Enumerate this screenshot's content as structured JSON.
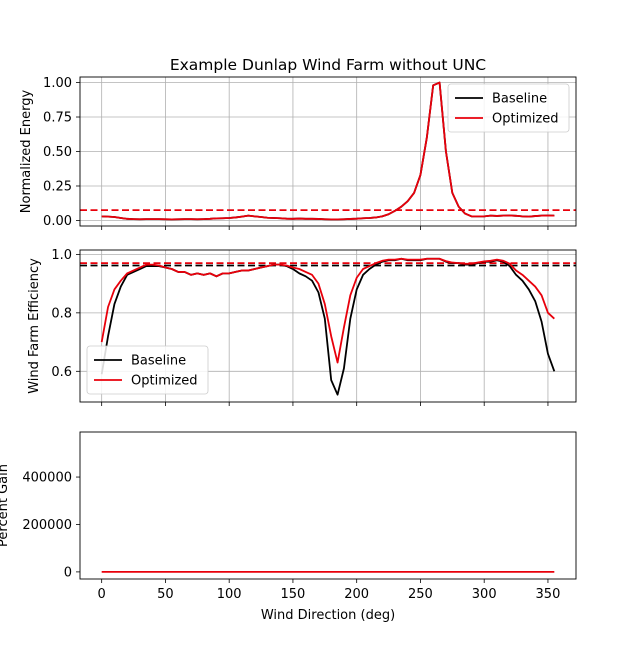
{
  "chart_data": {
    "title": "Example Dunlap Wind Farm without UNC",
    "xlabel": "Wind Direction (deg)",
    "x_ticks": [
      0,
      50,
      100,
      150,
      200,
      250,
      300,
      350
    ],
    "xlim": [
      -17,
      372
    ],
    "panels": [
      {
        "id": "energy",
        "type": "line",
        "ylabel": "Normalized Energy",
        "ylim": [
          -0.04,
          1.04
        ],
        "y_ticks": [
          0.0,
          0.25,
          0.5,
          0.75,
          1.0
        ],
        "y_tick_labels": [
          "0.00",
          "0.25",
          "0.50",
          "0.75",
          "1.00"
        ],
        "grid": true,
        "legend_position": "top-right",
        "reference_lines": [
          {
            "y": 0.075,
            "color": "#e8000b",
            "style": "dashed"
          }
        ],
        "x": [
          0,
          5,
          10,
          15,
          20,
          25,
          30,
          35,
          40,
          45,
          50,
          55,
          60,
          65,
          70,
          75,
          80,
          85,
          90,
          95,
          100,
          105,
          110,
          115,
          120,
          125,
          130,
          135,
          140,
          145,
          150,
          155,
          160,
          165,
          170,
          175,
          180,
          185,
          190,
          195,
          200,
          205,
          210,
          215,
          220,
          225,
          230,
          235,
          240,
          245,
          250,
          255,
          260,
          265,
          270,
          275,
          280,
          285,
          290,
          295,
          300,
          305,
          310,
          315,
          320,
          325,
          330,
          335,
          340,
          345,
          350,
          355
        ],
        "series": [
          {
            "name": "Baseline",
            "color": "#000000",
            "values": [
              0.03,
              0.028,
              0.025,
              0.018,
              0.012,
              0.01,
              0.009,
              0.01,
              0.01,
              0.01,
              0.009,
              0.008,
              0.009,
              0.01,
              0.01,
              0.009,
              0.01,
              0.012,
              0.015,
              0.016,
              0.018,
              0.022,
              0.028,
              0.035,
              0.03,
              0.025,
              0.02,
              0.018,
              0.016,
              0.013,
              0.012,
              0.014,
              0.012,
              0.012,
              0.011,
              0.009,
              0.008,
              0.008,
              0.009,
              0.011,
              0.013,
              0.016,
              0.018,
              0.022,
              0.03,
              0.045,
              0.07,
              0.1,
              0.14,
              0.2,
              0.33,
              0.6,
              0.98,
              1.0,
              0.5,
              0.2,
              0.1,
              0.05,
              0.03,
              0.03,
              0.03,
              0.035,
              0.033,
              0.035,
              0.036,
              0.034,
              0.03,
              0.028,
              0.032,
              0.035,
              0.036,
              0.035
            ]
          },
          {
            "name": "Optimized",
            "color": "#e8000b",
            "values": [
              0.03,
              0.028,
              0.025,
              0.018,
              0.012,
              0.01,
              0.009,
              0.01,
              0.01,
              0.01,
              0.009,
              0.008,
              0.009,
              0.01,
              0.01,
              0.009,
              0.01,
              0.012,
              0.015,
              0.016,
              0.018,
              0.022,
              0.028,
              0.035,
              0.03,
              0.025,
              0.02,
              0.018,
              0.016,
              0.013,
              0.012,
              0.014,
              0.012,
              0.012,
              0.011,
              0.009,
              0.008,
              0.008,
              0.009,
              0.011,
              0.013,
              0.016,
              0.018,
              0.022,
              0.03,
              0.045,
              0.07,
              0.1,
              0.14,
              0.2,
              0.33,
              0.6,
              0.98,
              1.0,
              0.5,
              0.2,
              0.1,
              0.05,
              0.03,
              0.03,
              0.03,
              0.035,
              0.033,
              0.035,
              0.036,
              0.034,
              0.03,
              0.028,
              0.032,
              0.035,
              0.036,
              0.035
            ]
          }
        ]
      },
      {
        "id": "efficiency",
        "type": "line",
        "ylabel": "Wind Farm Efficiency",
        "ylim": [
          0.495,
          1.015
        ],
        "y_ticks": [
          0.6,
          0.8,
          1.0
        ],
        "y_tick_labels": [
          "0.6",
          "0.8",
          "1.0"
        ],
        "grid": true,
        "legend_position": "lower-left",
        "reference_lines": [
          {
            "y": 0.962,
            "color": "#000000",
            "style": "dashed"
          },
          {
            "y": 0.97,
            "color": "#e8000b",
            "style": "dashed"
          }
        ],
        "x": [
          0,
          5,
          10,
          15,
          20,
          25,
          30,
          35,
          40,
          45,
          50,
          55,
          60,
          65,
          70,
          75,
          80,
          85,
          90,
          95,
          100,
          105,
          110,
          115,
          120,
          125,
          130,
          135,
          140,
          145,
          150,
          155,
          160,
          165,
          170,
          175,
          180,
          185,
          190,
          195,
          200,
          205,
          210,
          215,
          220,
          225,
          230,
          235,
          240,
          245,
          250,
          255,
          260,
          265,
          270,
          275,
          280,
          285,
          290,
          295,
          300,
          305,
          310,
          315,
          320,
          325,
          330,
          335,
          340,
          345,
          350,
          355
        ],
        "series": [
          {
            "name": "Baseline",
            "color": "#000000",
            "values": [
              0.59,
              0.72,
              0.83,
              0.89,
              0.93,
              0.94,
              0.95,
              0.96,
              0.96,
              0.96,
              0.955,
              0.95,
              0.94,
              0.94,
              0.93,
              0.935,
              0.93,
              0.935,
              0.925,
              0.935,
              0.935,
              0.94,
              0.945,
              0.945,
              0.95,
              0.955,
              0.96,
              0.965,
              0.965,
              0.96,
              0.95,
              0.935,
              0.925,
              0.91,
              0.87,
              0.78,
              0.57,
              0.52,
              0.61,
              0.78,
              0.88,
              0.93,
              0.95,
              0.965,
              0.975,
              0.98,
              0.98,
              0.985,
              0.98,
              0.98,
              0.98,
              0.985,
              0.985,
              0.985,
              0.975,
              0.97,
              0.97,
              0.965,
              0.965,
              0.97,
              0.975,
              0.975,
              0.98,
              0.975,
              0.96,
              0.93,
              0.91,
              0.88,
              0.84,
              0.77,
              0.66,
              0.6
            ]
          },
          {
            "name": "Optimized",
            "color": "#e8000b",
            "values": [
              0.7,
              0.82,
              0.88,
              0.91,
              0.935,
              0.945,
              0.955,
              0.965,
              0.965,
              0.962,
              0.955,
              0.95,
              0.94,
              0.94,
              0.93,
              0.935,
              0.93,
              0.935,
              0.925,
              0.935,
              0.935,
              0.94,
              0.945,
              0.945,
              0.95,
              0.955,
              0.96,
              0.965,
              0.965,
              0.962,
              0.955,
              0.95,
              0.94,
              0.93,
              0.9,
              0.83,
              0.72,
              0.63,
              0.75,
              0.86,
              0.92,
              0.95,
              0.96,
              0.97,
              0.978,
              0.982,
              0.982,
              0.985,
              0.982,
              0.982,
              0.982,
              0.985,
              0.985,
              0.985,
              0.977,
              0.972,
              0.97,
              0.968,
              0.968,
              0.972,
              0.976,
              0.978,
              0.982,
              0.978,
              0.968,
              0.945,
              0.93,
              0.91,
              0.89,
              0.86,
              0.8,
              0.78
            ]
          }
        ]
      },
      {
        "id": "gain",
        "type": "line",
        "ylabel": "Percent Gain",
        "ylim": [
          -30000,
          590000
        ],
        "y_ticks": [
          0,
          200000,
          400000
        ],
        "y_tick_labels": [
          "0",
          "200000",
          "400000"
        ],
        "grid": false,
        "x": [
          0,
          5,
          10,
          15,
          20,
          25,
          30,
          35,
          40,
          45,
          50,
          55,
          60,
          65,
          70,
          75,
          80,
          85,
          90,
          95,
          100,
          105,
          110,
          115,
          120,
          125,
          130,
          135,
          140,
          145,
          150,
          155,
          160,
          165,
          170,
          175,
          180,
          185,
          190,
          195,
          200,
          205,
          210,
          215,
          220,
          225,
          230,
          235,
          240,
          245,
          250,
          255,
          260,
          265,
          270,
          275,
          280,
          285,
          290,
          295,
          300,
          305,
          310,
          315,
          320,
          325,
          330,
          335,
          340,
          345,
          350,
          355
        ],
        "series": [
          {
            "name": "",
            "color": "#e8000b",
            "values": [
              0,
              0,
              0,
              0,
              0,
              0,
              0,
              0,
              0,
              0,
              0,
              0,
              0,
              0,
              0,
              0,
              0,
              0,
              0,
              0,
              0,
              0,
              0,
              0,
              0,
              0,
              0,
              0,
              0,
              0,
              0,
              0,
              0,
              0,
              0,
              0,
              0,
              0,
              0,
              0,
              0,
              0,
              0,
              0,
              0,
              0,
              0,
              0,
              0,
              0,
              0,
              0,
              0,
              0,
              0,
              0,
              0,
              0,
              0,
              0,
              0,
              0,
              0,
              0,
              0,
              0,
              0,
              0,
              0,
              0,
              0,
              0
            ]
          }
        ]
      }
    ]
  }
}
